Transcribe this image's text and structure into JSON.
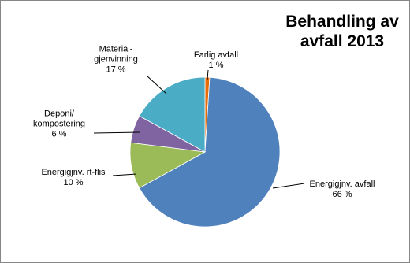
{
  "chart_data": {
    "type": "pie",
    "title": "Behandling av\navfall 2013",
    "categories": [
      "Farlig avfall",
      "Energigjnv. avfall",
      "Energigjnv. rt-flis",
      "Deponi/\nkompostering",
      "Material-\ngjenvinning"
    ],
    "values": [
      1,
      66,
      10,
      6,
      17
    ],
    "value_labels": [
      "1 %",
      "66 %",
      "10 %",
      "6 %",
      "17 %"
    ],
    "colors": [
      "#e46c0a",
      "#4f81bd",
      "#9bbb59",
      "#8064a2",
      "#4bacc6"
    ]
  }
}
